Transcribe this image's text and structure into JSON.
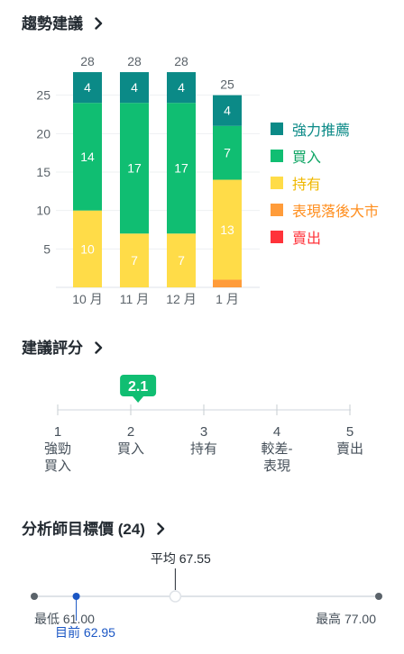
{
  "trend": {
    "title": "趨勢建議",
    "chart_data": {
      "type": "bar",
      "stacked": true,
      "categories": [
        "10 月",
        "11 月",
        "12 月",
        "1 月"
      ],
      "totals": [
        28,
        28,
        28,
        25
      ],
      "ylim": [
        0,
        30
      ],
      "yticks": [
        5,
        10,
        15,
        20,
        25
      ],
      "series": [
        {
          "name": "強力推薦",
          "color": "#0b8a87",
          "values": [
            4,
            4,
            4,
            4
          ]
        },
        {
          "name": "買入",
          "color": "#10be72",
          "values": [
            14,
            17,
            17,
            7
          ]
        },
        {
          "name": "持有",
          "color": "#ffdc48",
          "values": [
            10,
            7,
            7,
            13
          ]
        },
        {
          "name": "表現落後大市",
          "color": "#ff9c3a",
          "values": [
            0,
            0,
            0,
            1
          ]
        },
        {
          "name": "賣出",
          "color": "#ff333a",
          "values": [
            0,
            0,
            0,
            0
          ]
        }
      ]
    },
    "legend": [
      {
        "label": "強力推薦",
        "color": "#0b8a87"
      },
      {
        "label": "買入",
        "color": "#10be72"
      },
      {
        "label": "持有",
        "color": "#ffdc48"
      },
      {
        "label": "表現落後大市",
        "color": "#ff9c3a"
      },
      {
        "label": "賣出",
        "color": "#ff333a"
      }
    ]
  },
  "rating": {
    "title": "建議評分",
    "value": "2.1",
    "value_num": 2.1,
    "badge_color": "#10be72",
    "scale": [
      {
        "num": "1",
        "label_1": "強勁",
        "label_2": "買入"
      },
      {
        "num": "2",
        "label_1": "買入",
        "label_2": ""
      },
      {
        "num": "3",
        "label_1": "持有",
        "label_2": ""
      },
      {
        "num": "4",
        "label_1": "較差-",
        "label_2": "表現"
      },
      {
        "num": "5",
        "label_1": "賣出",
        "label_2": ""
      }
    ]
  },
  "price_target": {
    "title": "分析師目標價 (24)",
    "average_label": "平均 67.55",
    "low_label": "最低 61.00",
    "high_label": "最高 77.00",
    "current_label": "目前 62.95",
    "low": 61.0,
    "high": 77.0,
    "average": 67.55,
    "current": 62.95,
    "current_color": "#1a56c4"
  }
}
